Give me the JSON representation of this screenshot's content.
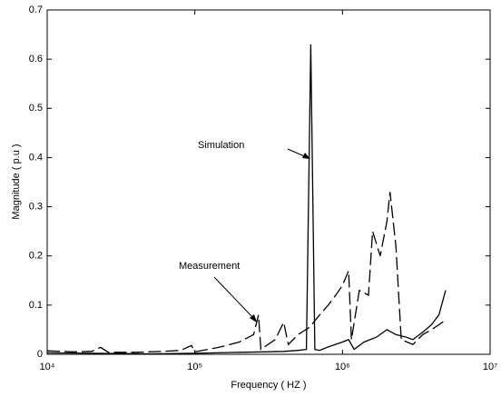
{
  "chart_data": {
    "type": "line",
    "xlabel": "Frequency ( HZ )",
    "ylabel": "Magnitude ( p.u )",
    "xscale": "log",
    "xlim": [
      10000,
      10000000
    ],
    "xticks": [
      {
        "value": 10000,
        "label": "10⁴"
      },
      {
        "value": 100000,
        "label": "10⁵"
      },
      {
        "value": 1000000,
        "label": "10⁶"
      },
      {
        "value": 10000000,
        "label": "10⁷"
      }
    ],
    "ylim": [
      0,
      0.7
    ],
    "yticks": [
      0,
      0.1,
      0.2,
      0.3,
      0.4,
      0.5,
      0.6,
      0.7
    ],
    "series": [
      {
        "name": "Simulation",
        "color": "#000000",
        "style": "solid",
        "x": [
          10000,
          20000,
          50000,
          100000,
          200000,
          300000,
          400000,
          500000,
          570000,
          610000,
          650000,
          700000,
          800000,
          1000000,
          1100000,
          1200000,
          1400000,
          1700000,
          2000000,
          2300000,
          2700000,
          3000000,
          3500000,
          4000000,
          4500000,
          5000000
        ],
        "values": [
          0.003,
          0.002,
          0.001,
          0.002,
          0.004,
          0.005,
          0.006,
          0.008,
          0.01,
          0.63,
          0.01,
          0.008,
          0.015,
          0.025,
          0.03,
          0.01,
          0.025,
          0.035,
          0.05,
          0.04,
          0.035,
          0.03,
          0.045,
          0.06,
          0.08,
          0.13
        ]
      },
      {
        "name": "Measurement",
        "color": "#000000",
        "style": "dashed",
        "x": [
          10000,
          15000,
          20000,
          23000,
          26000,
          40000,
          60000,
          80000,
          95000,
          100000,
          150000,
          200000,
          250000,
          270000,
          280000,
          350000,
          400000,
          430000,
          500000,
          600000,
          700000,
          800000,
          900000,
          1000000,
          1100000,
          1150000,
          1300000,
          1500000,
          1600000,
          1800000,
          2000000,
          2100000,
          2300000,
          2500000,
          3000000,
          3500000,
          4000000,
          4500000,
          5000000
        ],
        "values": [
          0.007,
          0.005,
          0.006,
          0.014,
          0.004,
          0.004,
          0.006,
          0.008,
          0.018,
          0.005,
          0.015,
          0.025,
          0.04,
          0.08,
          0.01,
          0.03,
          0.065,
          0.02,
          0.04,
          0.055,
          0.08,
          0.1,
          0.12,
          0.14,
          0.17,
          0.03,
          0.13,
          0.12,
          0.25,
          0.2,
          0.27,
          0.33,
          0.22,
          0.03,
          0.02,
          0.04,
          0.05,
          0.06,
          0.07
        ]
      }
    ]
  }
}
